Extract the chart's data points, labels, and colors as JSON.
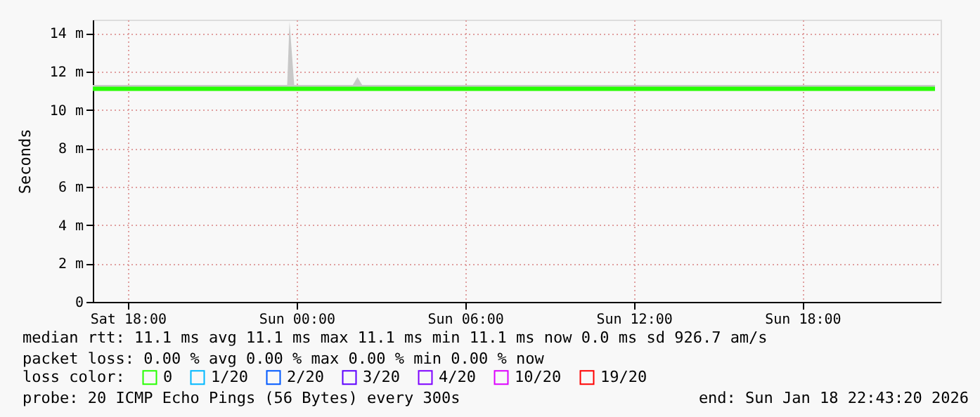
{
  "chart_data": {
    "type": "line",
    "ylabel": "Seconds",
    "legend_title": "loss color:",
    "legend": "bottom",
    "grid": true,
    "x": [
      "2026-01-17T16:45",
      "2026-01-17T17:00",
      "2026-01-17T18:00",
      "2026-01-17T19:00",
      "2026-01-17T20:00",
      "2026-01-17T21:00",
      "2026-01-17T22:00",
      "2026-01-17T23:00",
      "2026-01-17T23:40",
      "2026-01-17T23:45",
      "2026-01-17T23:55",
      "2026-01-18T00:00",
      "2026-01-18T01:00",
      "2026-01-18T02:00",
      "2026-01-18T02:10",
      "2026-01-18T02:20",
      "2026-01-18T03:00",
      "2026-01-18T04:00",
      "2026-01-18T05:00",
      "2026-01-18T06:00",
      "2026-01-18T07:00",
      "2026-01-18T08:00",
      "2026-01-18T09:00",
      "2026-01-18T10:00",
      "2026-01-18T11:00",
      "2026-01-18T12:00",
      "2026-01-18T13:00",
      "2026-01-18T14:00",
      "2026-01-18T15:00",
      "2026-01-18T16:00",
      "2026-01-18T17:00",
      "2026-01-18T18:00",
      "2026-01-18T19:00",
      "2026-01-18T20:00",
      "2026-01-18T21:00",
      "2026-01-18T22:00",
      "2026-01-18T22:43"
    ],
    "series": [
      {
        "name": "0",
        "color": "#26ff00",
        "values": [
          11.1,
          11.1,
          11.1,
          11.1,
          11.1,
          11.1,
          11.1,
          11.1,
          11.1,
          11.1,
          11.1,
          11.1,
          11.1,
          11.1,
          11.1,
          11.1,
          11.1,
          11.1,
          11.1,
          11.1,
          11.1,
          11.1,
          11.1,
          11.1,
          11.1,
          11.1,
          11.1,
          11.1,
          11.1,
          11.1,
          11.1,
          11.1,
          11.1,
          11.1,
          11.1,
          11.1,
          11.1
        ],
        "lower": [
          11.0,
          11.0,
          11.0,
          11.0,
          11.0,
          11.0,
          11.0,
          11.0,
          11.0,
          11.0,
          11.0,
          11.0,
          11.0,
          11.0,
          11.0,
          11.0,
          11.0,
          11.0,
          11.0,
          11.0,
          11.0,
          11.0,
          11.0,
          11.0,
          11.0,
          11.0,
          11.0,
          11.0,
          11.0,
          11.0,
          11.0,
          11.0,
          11.0,
          11.0,
          11.0,
          11.0,
          11.0
        ],
        "upper": [
          11.3,
          11.3,
          11.3,
          11.3,
          11.3,
          11.3,
          11.3,
          11.3,
          11.3,
          14.6,
          11.3,
          11.3,
          11.3,
          11.3,
          11.7,
          11.3,
          11.3,
          11.3,
          11.3,
          11.3,
          11.3,
          11.3,
          11.3,
          11.3,
          11.3,
          11.3,
          11.3,
          11.3,
          11.3,
          11.3,
          11.3,
          11.3,
          11.3,
          11.3,
          11.3,
          11.3,
          11.3
        ]
      },
      {
        "name": "1/20",
        "color": "#00b8ff",
        "values": [
          null,
          null,
          null,
          null,
          null,
          null,
          null,
          null,
          null,
          null,
          null,
          null,
          null,
          null,
          null,
          null,
          null,
          null,
          null,
          null,
          null,
          null,
          null,
          null,
          null,
          null,
          null,
          null,
          null,
          null,
          null,
          null,
          null,
          null,
          null,
          null,
          null
        ]
      },
      {
        "name": "2/20",
        "color": "#0059ff",
        "values": [
          null,
          null,
          null,
          null,
          null,
          null,
          null,
          null,
          null,
          null,
          null,
          null,
          null,
          null,
          null,
          null,
          null,
          null,
          null,
          null,
          null,
          null,
          null,
          null,
          null,
          null,
          null,
          null,
          null,
          null,
          null,
          null,
          null,
          null,
          null,
          null,
          null
        ]
      },
      {
        "name": "3/20",
        "color": "#5e00ff",
        "values": [
          null,
          null,
          null,
          null,
          null,
          null,
          null,
          null,
          null,
          null,
          null,
          null,
          null,
          null,
          null,
          null,
          null,
          null,
          null,
          null,
          null,
          null,
          null,
          null,
          null,
          null,
          null,
          null,
          null,
          null,
          null,
          null,
          null,
          null,
          null,
          null,
          null
        ]
      },
      {
        "name": "4/20",
        "color": "#7e00ff",
        "values": [
          null,
          null,
          null,
          null,
          null,
          null,
          null,
          null,
          null,
          null,
          null,
          null,
          null,
          null,
          null,
          null,
          null,
          null,
          null,
          null,
          null,
          null,
          null,
          null,
          null,
          null,
          null,
          null,
          null,
          null,
          null,
          null,
          null,
          null,
          null,
          null,
          null
        ]
      },
      {
        "name": "10/20",
        "color": "#dd00ff",
        "values": [
          null,
          null,
          null,
          null,
          null,
          null,
          null,
          null,
          null,
          null,
          null,
          null,
          null,
          null,
          null,
          null,
          null,
          null,
          null,
          null,
          null,
          null,
          null,
          null,
          null,
          null,
          null,
          null,
          null,
          null,
          null,
          null,
          null,
          null,
          null,
          null,
          null
        ]
      },
      {
        "name": "19/20",
        "color": "#ff0000",
        "values": [
          null,
          null,
          null,
          null,
          null,
          null,
          null,
          null,
          null,
          null,
          null,
          null,
          null,
          null,
          null,
          null,
          null,
          null,
          null,
          null,
          null,
          null,
          null,
          null,
          null,
          null,
          null,
          null,
          null,
          null,
          null,
          null,
          null,
          null,
          null,
          null,
          null
        ]
      }
    ],
    "xlim": [
      "2026-01-17T16:45",
      "2026-01-18T22:55"
    ],
    "xticks": [
      {
        "value": "2026-01-17T18:00",
        "label": "Sat 18:00"
      },
      {
        "value": "2026-01-18T00:00",
        "label": "Sun 00:00"
      },
      {
        "value": "2026-01-18T06:00",
        "label": "Sun 06:00"
      },
      {
        "value": "2026-01-18T12:00",
        "label": "Sun 12:00"
      },
      {
        "value": "2026-01-18T18:00",
        "label": "Sun 18:00"
      }
    ],
    "ylim": [
      0,
      14.7
    ],
    "yticks": [
      0,
      {
        "value": 2,
        "label": "2 m"
      },
      {
        "value": 4,
        "label": "4 m"
      },
      {
        "value": 6,
        "label": "6 m"
      },
      {
        "value": 8,
        "label": "8 m"
      },
      {
        "value": 10,
        "label": "10 m"
      },
      {
        "value": 12,
        "label": "12 m"
      },
      {
        "value": 14,
        "label": "14 m"
      }
    ],
    "annotations": [
      "median rtt:  11.1 ms avg  11.1 ms max  11.1 ms min  11.1 ms now  0.0 ms sd  926.7   am/s",
      "packet loss: 0.00 % avg  0.00 % max  0.00 % min  0.00 % now",
      "probe:       20 ICMP Echo Pings (56 Bytes) every 300s",
      "end: Sun Jan 18 22:43:20 2026"
    ]
  }
}
